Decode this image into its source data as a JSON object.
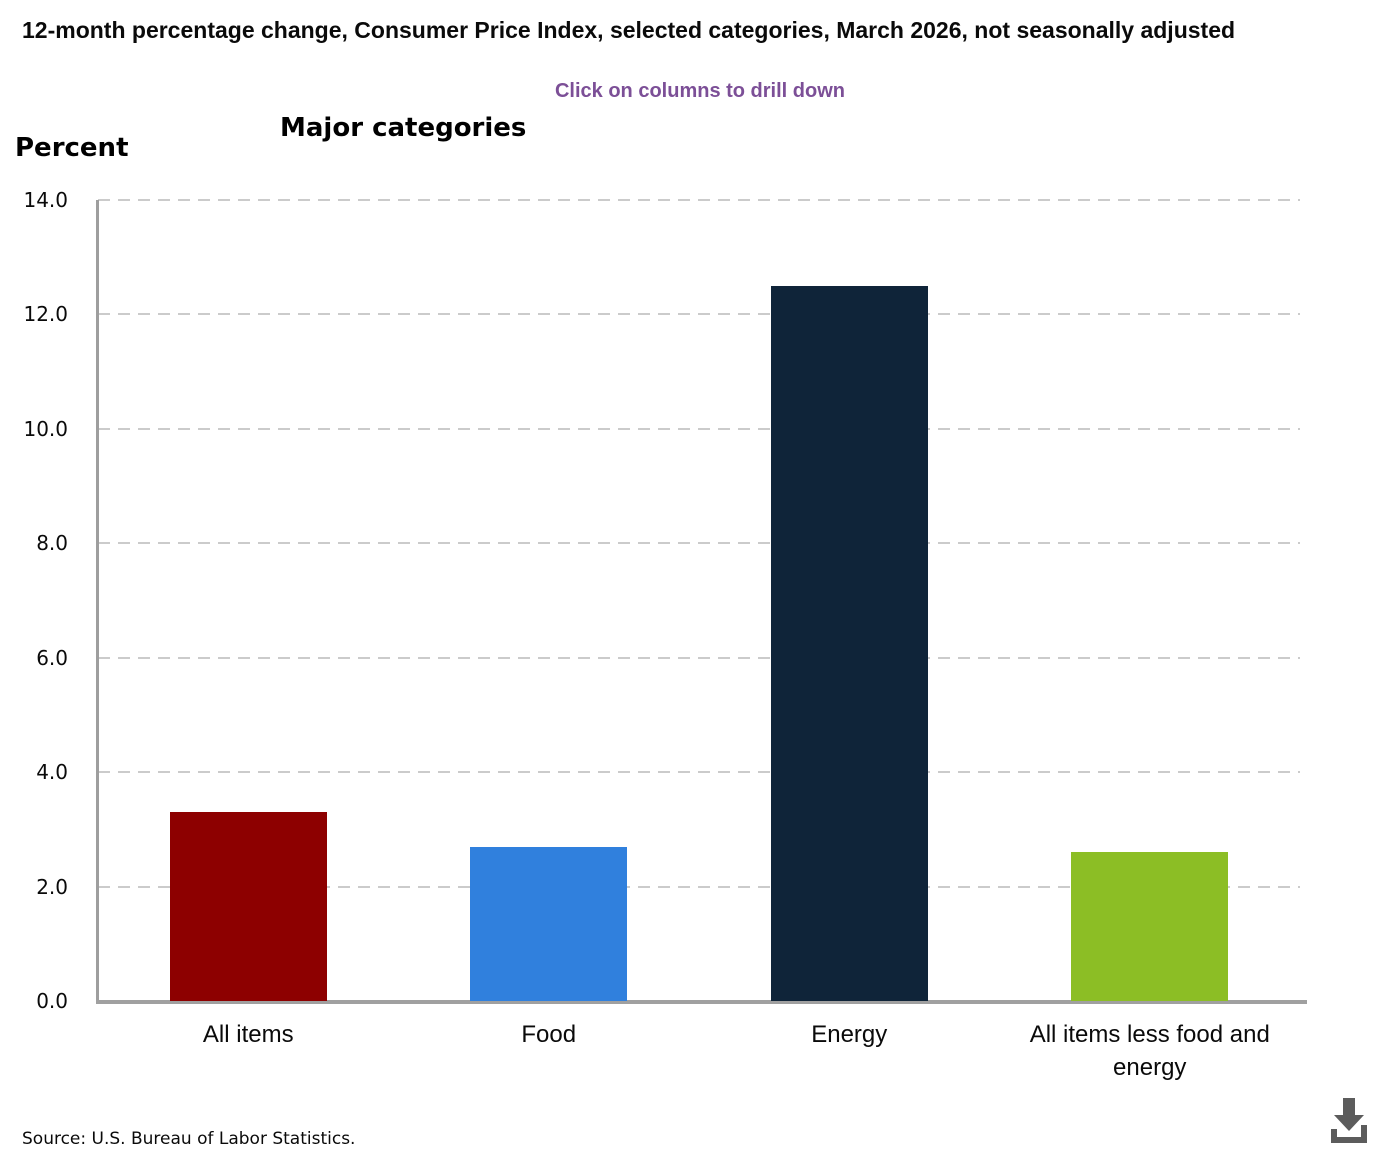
{
  "header": {
    "title": "12-month percentage change, Consumer Price Index, selected categories, March 2026, not seasonally adjusted",
    "subtitle": "Click on columns to drill down",
    "panel_title": "Major categories",
    "unit_label": "Percent"
  },
  "footer": {
    "source": "Source: U.S. Bureau of Labor Statistics."
  },
  "icons": {
    "download": "download-icon"
  },
  "colors": {
    "accent_subtitle": "#7c4f97",
    "gridline": "#cbcbcb",
    "axis": "#9e9e9e",
    "download_icon": "#5c5c5c"
  },
  "chart_data": {
    "type": "bar",
    "title": "Major categories",
    "ylabel": "Percent",
    "categories": [
      "All items",
      "Food",
      "Energy",
      "All items less food and energy"
    ],
    "values": [
      3.3,
      2.7,
      12.5,
      2.6
    ],
    "bar_colors": [
      "#8d0000",
      "#3080dd",
      "#0f2439",
      "#8cbe25"
    ],
    "ylim": [
      0,
      14
    ],
    "ytick_labels": [
      "0.0",
      "2.0",
      "4.0",
      "6.0",
      "8.0",
      "10.0",
      "12.0",
      "14.0"
    ],
    "grid": "horizontal-dashed",
    "legend": "none",
    "note": "columns are clickable to drill down"
  }
}
